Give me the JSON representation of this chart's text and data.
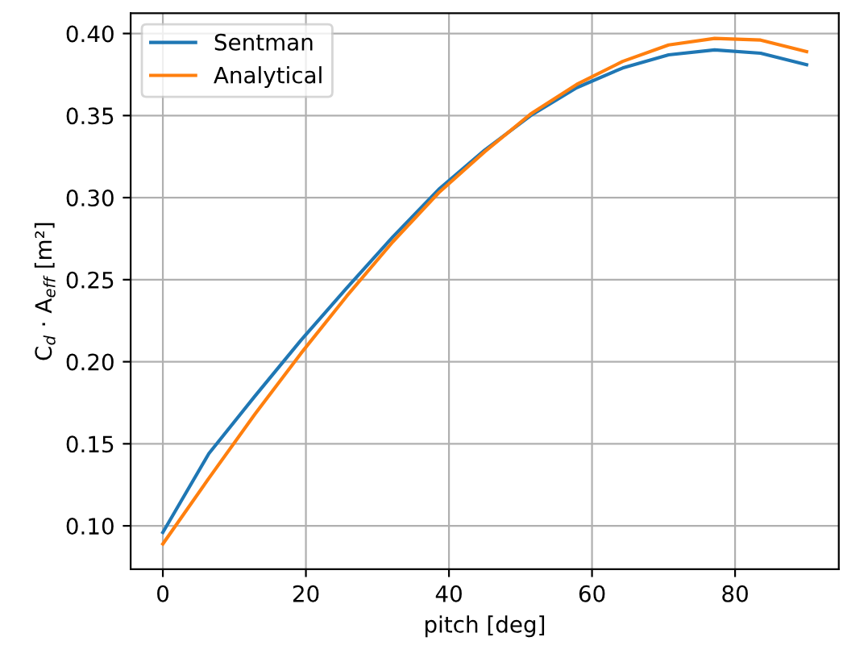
{
  "chart_data": {
    "type": "line",
    "xlabel": "pitch [deg]",
    "ylabel": "C$_{d}$ · A$_{eff}$ [m²]",
    "x": [
      0,
      6.43,
      12.86,
      19.29,
      25.71,
      32.14,
      38.57,
      45,
      51.43,
      57.86,
      64.29,
      70.71,
      77.14,
      83.57,
      90
    ],
    "series": [
      {
        "name": "Sentman",
        "color": "#1f77b4",
        "values": [
          0.096,
          0.144,
          0.179,
          0.213,
          0.245,
          0.276,
          0.305,
          0.329,
          0.35,
          0.367,
          0.379,
          0.387,
          0.39,
          0.388,
          0.381
        ]
      },
      {
        "name": "Analytical",
        "color": "#ff7f0e",
        "values": [
          0.089,
          0.129,
          0.168,
          0.205,
          0.24,
          0.273,
          0.303,
          0.328,
          0.351,
          0.369,
          0.383,
          0.393,
          0.397,
          0.396,
          0.389
        ]
      }
    ],
    "xlim": [
      -4.5,
      94.5
    ],
    "ylim": [
      0.0736,
      0.4124
    ],
    "xticks": [
      0,
      20,
      40,
      60,
      80
    ],
    "yticks": [
      {
        "value": 0.1,
        "label": "0.10"
      },
      {
        "value": 0.15,
        "label": "0.15"
      },
      {
        "value": 0.2,
        "label": "0.20"
      },
      {
        "value": 0.25,
        "label": "0.25"
      },
      {
        "value": 0.3,
        "label": "0.30"
      },
      {
        "value": 0.35,
        "label": "0.35"
      },
      {
        "value": 0.4,
        "label": "0.40"
      }
    ],
    "grid": true,
    "legend": "top left"
  }
}
